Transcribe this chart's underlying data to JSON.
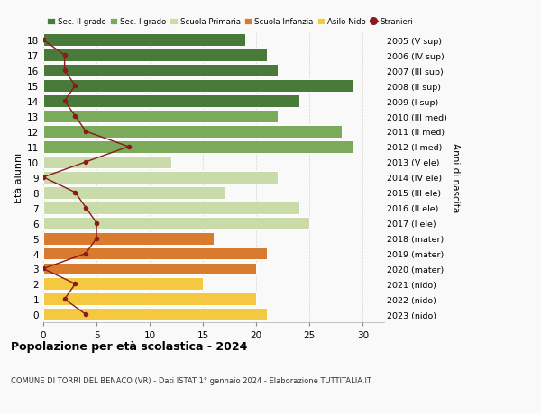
{
  "ages": [
    0,
    1,
    2,
    3,
    4,
    5,
    6,
    7,
    8,
    9,
    10,
    11,
    12,
    13,
    14,
    15,
    16,
    17,
    18
  ],
  "right_labels": [
    "2023 (nido)",
    "2022 (nido)",
    "2021 (nido)",
    "2020 (mater)",
    "2019 (mater)",
    "2018 (mater)",
    "2017 (I ele)",
    "2016 (II ele)",
    "2015 (III ele)",
    "2014 (IV ele)",
    "2013 (V ele)",
    "2012 (I med)",
    "2011 (II med)",
    "2010 (III med)",
    "2009 (I sup)",
    "2008 (II sup)",
    "2007 (III sup)",
    "2006 (IV sup)",
    "2005 (V sup)"
  ],
  "bar_values": [
    21,
    20,
    15,
    20,
    21,
    16,
    25,
    24,
    17,
    22,
    12,
    29,
    28,
    22,
    24,
    29,
    22,
    21,
    19
  ],
  "bar_colors": [
    "#f5c842",
    "#f5c842",
    "#f5c842",
    "#d97b2e",
    "#d97b2e",
    "#d97b2e",
    "#c8dba8",
    "#c8dba8",
    "#c8dba8",
    "#c8dba8",
    "#c8dba8",
    "#7aaa5a",
    "#7aaa5a",
    "#7aaa5a",
    "#4a7a3a",
    "#4a7a3a",
    "#4a7a3a",
    "#4a7a3a",
    "#4a7a3a"
  ],
  "stranieri_values": [
    4,
    2,
    3,
    0,
    4,
    5,
    5,
    4,
    3,
    0,
    4,
    8,
    4,
    3,
    2,
    3,
    2,
    2,
    0
  ],
  "legend_labels": [
    "Sec. II grado",
    "Sec. I grado",
    "Scuola Primaria",
    "Scuola Infanzia",
    "Asilo Nido",
    "Stranieri"
  ],
  "legend_colors": [
    "#4a7a3a",
    "#7aaa5a",
    "#c8dba8",
    "#d97b2e",
    "#f5c842",
    "#8b1a1a"
  ],
  "title": "Popolazione per età scolastica - 2024",
  "subtitle": "COMUNE DI TORRI DEL BENACO (VR) - Dati ISTAT 1° gennaio 2024 - Elaborazione TUTTITALIA.IT",
  "ylabel_left": "Età alunni",
  "ylabel_right": "Anni di nascita",
  "xlim": [
    0,
    32
  ],
  "background_color": "#f9f9f9"
}
